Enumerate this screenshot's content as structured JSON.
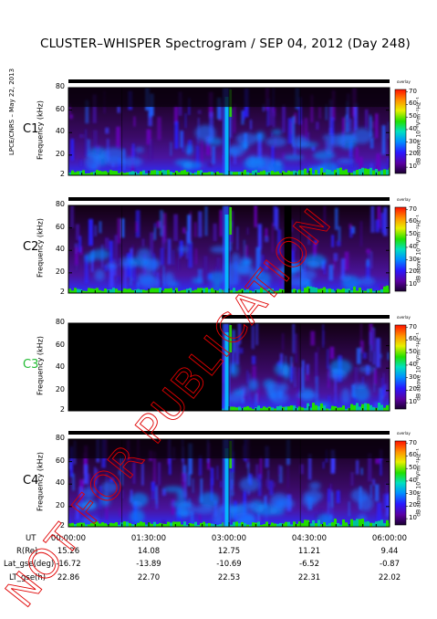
{
  "title": "CLUSTER–WHISPER Spectrogram / SEP 04, 2012 (Day 248)",
  "side_credit": "LPCE/CNRS – May 22, 2013",
  "watermark": "NOT FOR PUBLICATION",
  "colors": {
    "background_bg": "#0a0010",
    "accent_green": "#2fd000",
    "label_c3": "#22bb33"
  },
  "chart_data": {
    "type": "heatmap",
    "panels": [
      {
        "name": "C1",
        "label_color": "#000000",
        "ylabel": "Frequency (kHz)",
        "ylim": [
          2,
          80
        ],
        "yticks": [
          "80",
          "60",
          "40",
          "20",
          "2"
        ],
        "gaps": []
      },
      {
        "name": "C2",
        "label_color": "#000000",
        "ylabel": "Frequency (kHz)",
        "ylim": [
          2,
          80
        ],
        "yticks": [
          "80",
          "60",
          "40",
          "20",
          "2"
        ],
        "gaps": [
          [
            "04:02:00",
            "04:10:00"
          ]
        ]
      },
      {
        "name": "C3",
        "label_color": "#22bb33",
        "ylabel": "Frequency (kHz)",
        "ylim": [
          2,
          80
        ],
        "yticks": [
          "80",
          "60",
          "40",
          "20",
          "2"
        ],
        "gaps": [
          [
            "00:00:00",
            "02:52:00"
          ]
        ]
      },
      {
        "name": "C4",
        "label_color": "#000000",
        "ylabel": "Frequency (kHz)",
        "ylim": [
          2,
          80
        ],
        "yticks": [
          "80",
          "60",
          "40",
          "20",
          "2"
        ],
        "gaps": []
      }
    ],
    "colorbar": {
      "label": "dB above 10⁻⁸V²m⁻²Hz⁻¹",
      "top_label": "overlay",
      "ticks": [
        "70",
        "60",
        "50",
        "40",
        "30",
        "20",
        "10"
      ],
      "range": [
        5,
        72
      ]
    },
    "x_axis": {
      "row_labels": [
        "UT",
        "R(Re)",
        "Lat_gse(deg)",
        "LT_gse(h)"
      ],
      "ticks": [
        "00:00:00",
        "01:30:00",
        "03:00:00",
        "04:30:00",
        "06:00:00"
      ],
      "R": [
        "15.26",
        "14.08",
        "12.75",
        "11.21",
        "9.44"
      ],
      "Lat_gse": [
        "-16.72",
        "-13.89",
        "-10.69",
        "-6.52",
        "-0.87"
      ],
      "LT_gse": [
        "22.86",
        "22.70",
        "22.53",
        "22.31",
        "22.02"
      ]
    }
  }
}
